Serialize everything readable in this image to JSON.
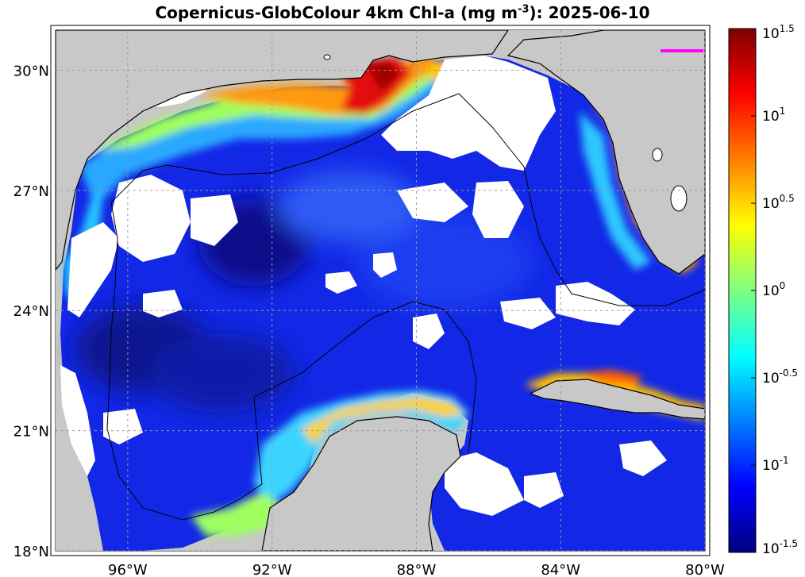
{
  "title": {
    "prefix": "Copernicus-GlobColour 4km Chl-a (mg m",
    "exponent": "-3",
    "suffix": "): 2025-06-10"
  },
  "map": {
    "extent": {
      "lon_min": -98,
      "lon_max": -80,
      "lat_min": 18,
      "lat_max": 31
    },
    "lat_ticks": [
      {
        "value": 30,
        "label": "30°N"
      },
      {
        "value": 27,
        "label": "27°N"
      },
      {
        "value": 24,
        "label": "24°N"
      },
      {
        "value": 21,
        "label": "21°N"
      },
      {
        "value": 18,
        "label": "18°N"
      }
    ],
    "lon_ticks": [
      {
        "value": -96,
        "label": "96°W"
      },
      {
        "value": -92,
        "label": "92°W"
      },
      {
        "value": -88,
        "label": "88°W"
      },
      {
        "value": -84,
        "label": "84°W"
      },
      {
        "value": -80,
        "label": "80°W"
      }
    ],
    "colors": {
      "land": "#c8c8c8",
      "no_data": "#ffffff",
      "gridline": "#9a9a9a",
      "marker_line": "#ff00ff"
    }
  },
  "colorbar": {
    "scale": "log10",
    "range": [
      -1.5,
      1.5
    ],
    "ticks": [
      {
        "base": "10",
        "exp": "1.5"
      },
      {
        "base": "10",
        "exp": "1"
      },
      {
        "base": "10",
        "exp": "0.5"
      },
      {
        "base": "10",
        "exp": "0"
      },
      {
        "base": "10",
        "exp": "-0.5"
      },
      {
        "base": "10",
        "exp": "-1"
      },
      {
        "base": "10",
        "exp": "-1.5"
      }
    ],
    "colormap": "jet",
    "stops": [
      "#00007f",
      "#0000ff",
      "#007fff",
      "#00ffff",
      "#7fff7f",
      "#ffff00",
      "#ff7f00",
      "#ff0000",
      "#7f0000"
    ]
  }
}
